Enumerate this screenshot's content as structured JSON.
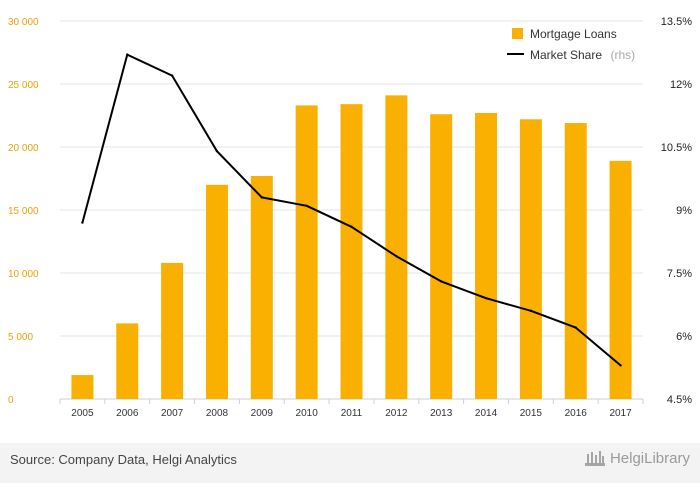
{
  "chart_data": {
    "type": "bar+line",
    "categories": [
      "2005",
      "2006",
      "2007",
      "2008",
      "2009",
      "2010",
      "2011",
      "2012",
      "2013",
      "2014",
      "2015",
      "2016",
      "2017"
    ],
    "series": [
      {
        "name": "Mortgage Loans",
        "axis": "left",
        "chart": "bar",
        "color": "#f9b000",
        "values": [
          1900,
          6000,
          10800,
          17000,
          17700,
          23300,
          23400,
          24100,
          22600,
          22700,
          22200,
          21900,
          18900
        ]
      },
      {
        "name": "Market Share",
        "axis": "right",
        "chart": "line",
        "color": "#000000",
        "values": [
          8.7,
          12.7,
          12.2,
          10.4,
          9.3,
          9.1,
          8.6,
          7.9,
          7.3,
          6.9,
          6.6,
          6.2,
          5.3
        ]
      }
    ],
    "y_left": {
      "ylim": [
        0,
        30000
      ],
      "ticks": [
        "0",
        "5 000",
        "10 000",
        "15 000",
        "20 000",
        "25 000",
        "30 000"
      ]
    },
    "y_right": {
      "ylim": [
        4.5,
        13.5
      ],
      "ticks": [
        "4.5%",
        "6%",
        "7.5%",
        "9%",
        "10.5%",
        "12%",
        "13.5%"
      ]
    },
    "grid": true,
    "legend": {
      "position": "top-right",
      "items": [
        {
          "label": "Mortgage Loans",
          "marker": "square",
          "color": "#f9b000"
        },
        {
          "label": "Market Share",
          "suffix": "(rhs)",
          "marker": "line",
          "color": "#000000"
        }
      ]
    }
  },
  "footer": {
    "source": "Source: Company Data, Helgi Analytics",
    "brand": "HelgiLibrary"
  }
}
